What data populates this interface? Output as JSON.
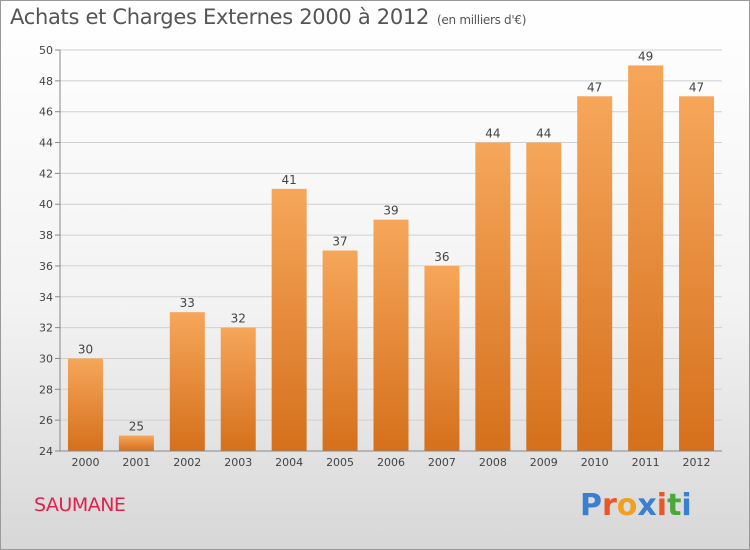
{
  "header": {
    "title": "Achats et Charges Externes 2000 à 2012",
    "unit": "(en milliers d'€)"
  },
  "footer": {
    "commune": "SAUMANE",
    "logo_letters": [
      "P",
      "r",
      "o",
      "x",
      "i",
      "t",
      "i"
    ],
    "logo_colors": [
      "#3a7fd0",
      "#e8562a",
      "#f0a020",
      "#3a7fd0",
      "#e8562a",
      "#4aa838",
      "#3a7fd0"
    ]
  },
  "colors": {
    "bar_light": "#f6a65a",
    "bar_dark": "#d5701c",
    "grid": "#d0d0d0",
    "axis_text": "#444444"
  },
  "chart_data": {
    "type": "bar",
    "title": "Achats et Charges Externes 2000 à 2012",
    "categories": [
      "2000",
      "2001",
      "2002",
      "2003",
      "2004",
      "2005",
      "2006",
      "2007",
      "2008",
      "2009",
      "2010",
      "2011",
      "2012"
    ],
    "values": [
      30,
      25,
      33,
      32,
      41,
      37,
      39,
      36,
      44,
      44,
      47,
      49,
      47
    ],
    "ylim": [
      24,
      50
    ],
    "yticks": [
      24,
      26,
      28,
      30,
      32,
      34,
      36,
      38,
      40,
      42,
      44,
      46,
      48,
      50
    ],
    "grid": true,
    "xlabel": "",
    "ylabel": ""
  }
}
